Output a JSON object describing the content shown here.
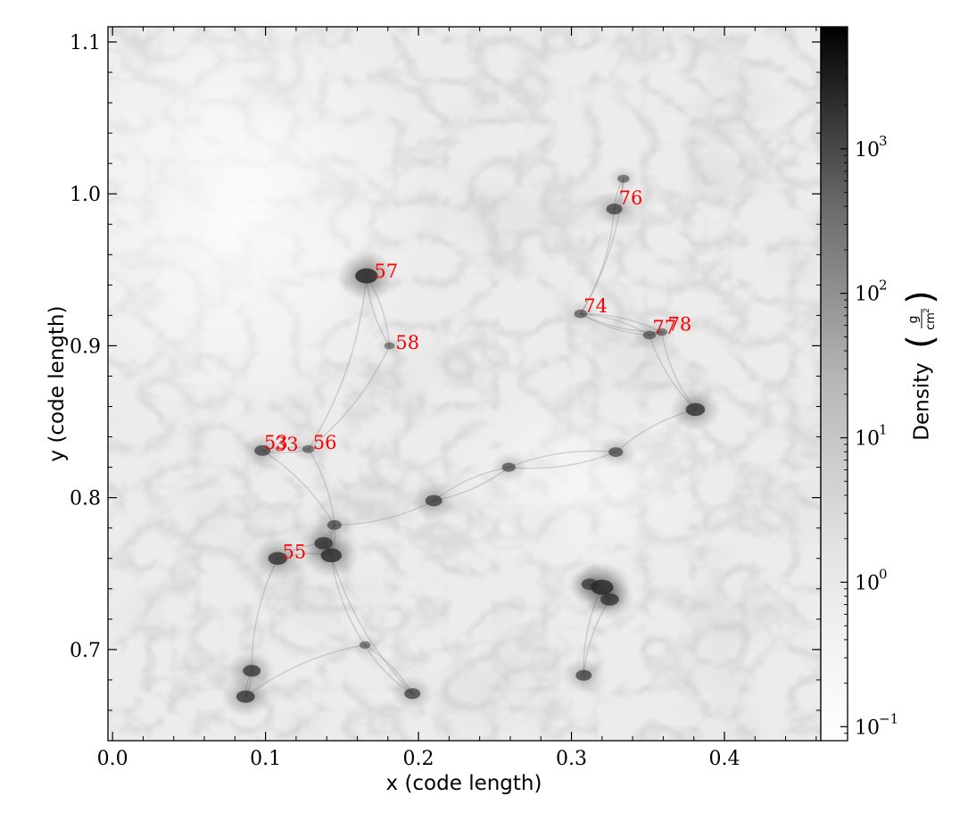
{
  "chart_data": {
    "type": "heatmap",
    "title": "",
    "xlabel": "x  (code length)",
    "ylabel": "y  (code length)",
    "xlim": [
      -0.003,
      0.463
    ],
    "ylim": [
      0.64,
      1.11
    ],
    "x_ticks": [
      {
        "value": 0.0,
        "label": "0.0"
      },
      {
        "value": 0.1,
        "label": "0.1"
      },
      {
        "value": 0.2,
        "label": "0.2"
      },
      {
        "value": 0.3,
        "label": "0.3"
      },
      {
        "value": 0.4,
        "label": "0.4"
      }
    ],
    "y_ticks": [
      {
        "value": 0.7,
        "label": "0.7"
      },
      {
        "value": 0.8,
        "label": "0.8"
      },
      {
        "value": 0.9,
        "label": "0.9"
      },
      {
        "value": 1.0,
        "label": "1.0"
      },
      {
        "value": 1.1,
        "label": "1.1"
      }
    ],
    "colorbar": {
      "label": "Density",
      "unit_numerator": "g",
      "unit_denominator": "cm",
      "unit_denominator_exponent": "2",
      "scale": "log",
      "range": [
        0.08,
        7000
      ],
      "colormap": [
        "#ffffff",
        "#000000"
      ],
      "ticks": [
        {
          "value": 0.1,
          "base": "10",
          "exponent": "−1"
        },
        {
          "value": 1,
          "base": "10",
          "exponent": "0"
        },
        {
          "value": 10,
          "base": "10",
          "exponent": "1"
        },
        {
          "value": 100,
          "base": "10",
          "exponent": "2"
        },
        {
          "value": 1000,
          "base": "10",
          "exponent": "3"
        }
      ]
    },
    "annotations": [
      {
        "label": "57",
        "x": 0.171,
        "y": 0.945
      },
      {
        "label": "76",
        "x": 0.331,
        "y": 0.993
      },
      {
        "label": "74",
        "x": 0.308,
        "y": 0.922
      },
      {
        "label": "58",
        "x": 0.185,
        "y": 0.898
      },
      {
        "label": "77",
        "x": 0.353,
        "y": 0.908
      },
      {
        "label": "78",
        "x": 0.363,
        "y": 0.91
      },
      {
        "label": "53",
        "x": 0.099,
        "y": 0.832
      },
      {
        "label": "33",
        "x": 0.106,
        "y": 0.831
      },
      {
        "label": "56",
        "x": 0.131,
        "y": 0.832
      },
      {
        "label": "55",
        "x": 0.111,
        "y": 0.76
      }
    ],
    "dense_features": [
      {
        "x": 0.166,
        "y": 0.946,
        "v": 2.0
      },
      {
        "x": 0.328,
        "y": 0.99,
        "v": 1.2
      },
      {
        "x": 0.334,
        "y": 1.01,
        "v": 0.7
      },
      {
        "x": 0.306,
        "y": 0.921,
        "v": 0.8
      },
      {
        "x": 0.181,
        "y": 0.9,
        "v": 0.5
      },
      {
        "x": 0.351,
        "y": 0.907,
        "v": 0.8
      },
      {
        "x": 0.359,
        "y": 0.909,
        "v": 0.6
      },
      {
        "x": 0.098,
        "y": 0.831,
        "v": 1.2
      },
      {
        "x": 0.128,
        "y": 0.832,
        "v": 0.7
      },
      {
        "x": 0.108,
        "y": 0.76,
        "v": 1.6
      },
      {
        "x": 0.143,
        "y": 0.762,
        "v": 1.8
      },
      {
        "x": 0.138,
        "y": 0.77,
        "v": 1.5
      },
      {
        "x": 0.145,
        "y": 0.782,
        "v": 1.0
      },
      {
        "x": 0.21,
        "y": 0.798,
        "v": 1.3
      },
      {
        "x": 0.259,
        "y": 0.82,
        "v": 0.9
      },
      {
        "x": 0.329,
        "y": 0.83,
        "v": 1.0
      },
      {
        "x": 0.381,
        "y": 0.858,
        "v": 1.6
      },
      {
        "x": 0.32,
        "y": 0.741,
        "v": 2.0
      },
      {
        "x": 0.325,
        "y": 0.733,
        "v": 1.5
      },
      {
        "x": 0.312,
        "y": 0.743,
        "v": 1.3
      },
      {
        "x": 0.308,
        "y": 0.683,
        "v": 1.2
      },
      {
        "x": 0.091,
        "y": 0.686,
        "v": 1.4
      },
      {
        "x": 0.087,
        "y": 0.669,
        "v": 1.5
      },
      {
        "x": 0.196,
        "y": 0.671,
        "v": 1.2
      },
      {
        "x": 0.165,
        "y": 0.703,
        "v": 0.6
      }
    ]
  }
}
